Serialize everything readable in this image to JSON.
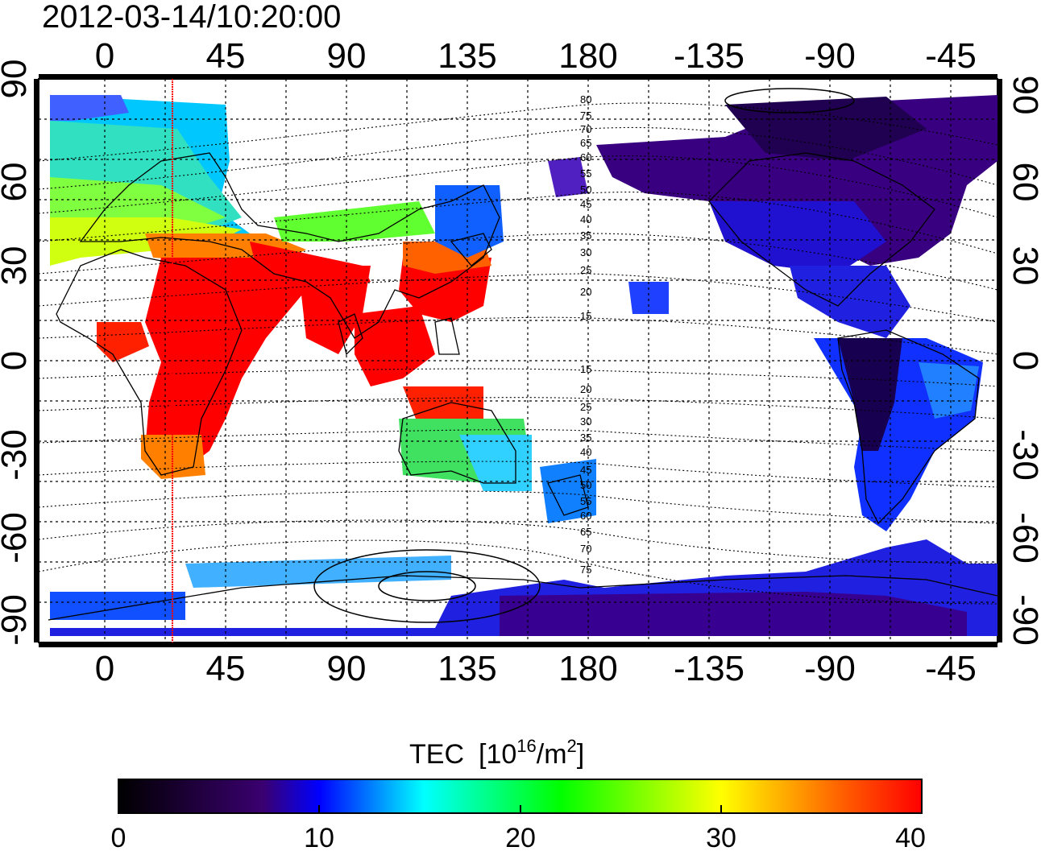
{
  "title": "2012-03-14/10:20:00",
  "map": {
    "x_ticks": [
      "0",
      "45",
      "90",
      "135",
      "180",
      "-135",
      "-90",
      "-45"
    ],
    "y_ticks": [
      "90",
      "60",
      "30",
      "0",
      "-30",
      "-60",
      "-90"
    ],
    "magnetic_latitude_labels": [
      "80",
      "75",
      "70",
      "65",
      "60",
      "55",
      "50",
      "45",
      "40",
      "35",
      "30",
      "25",
      "20",
      "15",
      "15",
      "20",
      "25",
      "30",
      "35",
      "40",
      "45",
      "50",
      "55",
      "60",
      "65",
      "70",
      "75"
    ]
  },
  "colorbar": {
    "label": "TEC",
    "unit_base": "[10",
    "unit_exp1": "16",
    "unit_mid": "/m",
    "unit_exp2": "2",
    "unit_end": "]",
    "ticks": [
      "0",
      "10",
      "20",
      "30",
      "40"
    ],
    "min": 0,
    "max": 40,
    "colors": [
      "#000000",
      "#3a0070",
      "#0000ff",
      "#00ffff",
      "#00ff00",
      "#ffff00",
      "#ff0000"
    ]
  },
  "colors": {
    "terminator": "#ff0000"
  }
}
